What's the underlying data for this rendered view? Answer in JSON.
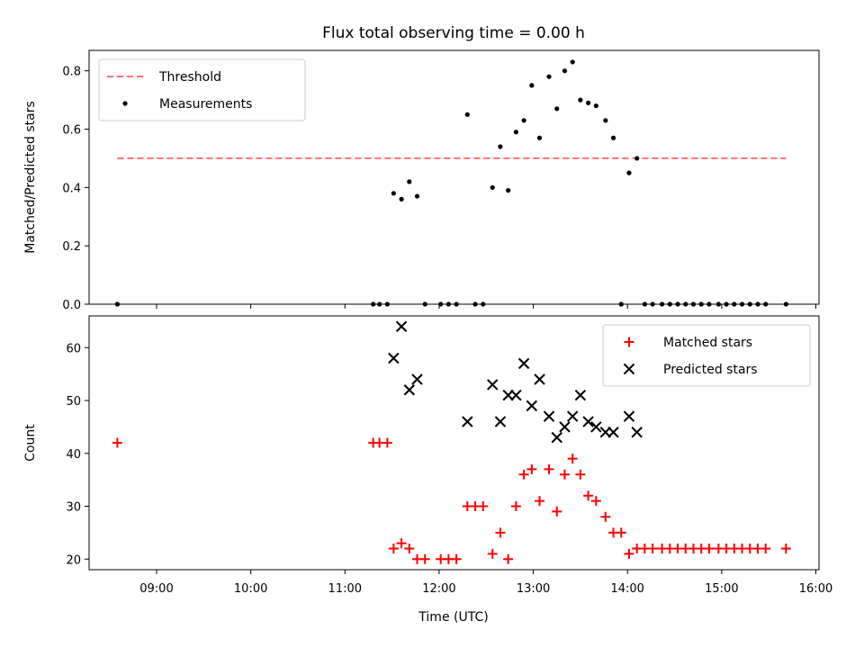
{
  "chart_data": {
    "title": "Flux total observing time = 0.00 h",
    "xlabel": "Time (UTC)",
    "xticks": [
      "09:00",
      "10:00",
      "11:00",
      "12:00",
      "13:00",
      "14:00",
      "15:00",
      "16:00"
    ],
    "colors": {
      "threshold": "#ff7070",
      "measurements": "#000000",
      "matched": "#ff0000",
      "predicted": "#000000"
    },
    "panels": [
      {
        "type": "scatter",
        "ylabel": "Matched/Predicted stars",
        "ylim": [
          0,
          0.87
        ],
        "yticks": [
          "0.0",
          "0.2",
          "0.4",
          "0.6",
          "0.8"
        ],
        "ytick_values": [
          0,
          0.2,
          0.4,
          0.6,
          0.8
        ],
        "legend_placement": "upper-left",
        "threshold": {
          "name": "Threshold",
          "value": 0.5,
          "x_range": [
            "08:35",
            "15:41"
          ]
        },
        "series": [
          {
            "name": "Measurements",
            "marker": "dot",
            "points": [
              [
                "08:35",
                0.0
              ],
              [
                "11:18",
                0.0
              ],
              [
                "11:22",
                0.0
              ],
              [
                "11:27",
                0.0
              ],
              [
                "11:31",
                0.38
              ],
              [
                "11:36",
                0.36
              ],
              [
                "11:41",
                0.42
              ],
              [
                "11:46",
                0.37
              ],
              [
                "11:51",
                0.0
              ],
              [
                "12:01",
                0.0
              ],
              [
                "12:06",
                0.0
              ],
              [
                "12:11",
                0.0
              ],
              [
                "12:18",
                0.65
              ],
              [
                "12:23",
                0.0
              ],
              [
                "12:28",
                0.0
              ],
              [
                "12:34",
                0.4
              ],
              [
                "12:39",
                0.54
              ],
              [
                "12:44",
                0.39
              ],
              [
                "12:49",
                0.59
              ],
              [
                "12:54",
                0.63
              ],
              [
                "12:59",
                0.75
              ],
              [
                "13:04",
                0.57
              ],
              [
                "13:10",
                0.78
              ],
              [
                "13:15",
                0.67
              ],
              [
                "13:20",
                0.8
              ],
              [
                "13:25",
                0.83
              ],
              [
                "13:30",
                0.7
              ],
              [
                "13:35",
                0.69
              ],
              [
                "13:40",
                0.68
              ],
              [
                "13:46",
                0.63
              ],
              [
                "13:51",
                0.57
              ],
              [
                "13:56",
                0.0
              ],
              [
                "14:01",
                0.45
              ],
              [
                "14:06",
                0.5
              ],
              [
                "14:11",
                0.0
              ],
              [
                "14:16",
                0.0
              ],
              [
                "14:22",
                0.0
              ],
              [
                "14:27",
                0.0
              ],
              [
                "14:32",
                0.0
              ],
              [
                "14:37",
                0.0
              ],
              [
                "14:42",
                0.0
              ],
              [
                "14:47",
                0.0
              ],
              [
                "14:52",
                0.0
              ],
              [
                "14:58",
                0.0
              ],
              [
                "15:03",
                0.0
              ],
              [
                "15:08",
                0.0
              ],
              [
                "15:13",
                0.0
              ],
              [
                "15:18",
                0.0
              ],
              [
                "15:23",
                0.0
              ],
              [
                "15:28",
                0.0
              ],
              [
                "15:41",
                0.0
              ]
            ]
          }
        ]
      },
      {
        "type": "scatter",
        "ylabel": "Count",
        "ylim": [
          18,
          66
        ],
        "yticks": [
          "20",
          "30",
          "40",
          "50",
          "60"
        ],
        "ytick_values": [
          20,
          30,
          40,
          50,
          60
        ],
        "legend_placement": "upper-right",
        "series": [
          {
            "name": "Matched stars",
            "marker": "plus",
            "points": [
              [
                "08:35",
                42
              ],
              [
                "11:18",
                42
              ],
              [
                "11:22",
                42
              ],
              [
                "11:27",
                42
              ],
              [
                "11:31",
                22
              ],
              [
                "11:36",
                23
              ],
              [
                "11:41",
                22
              ],
              [
                "11:46",
                20
              ],
              [
                "11:51",
                20
              ],
              [
                "12:01",
                20
              ],
              [
                "12:06",
                20
              ],
              [
                "12:11",
                20
              ],
              [
                "12:18",
                30
              ],
              [
                "12:23",
                30
              ],
              [
                "12:28",
                30
              ],
              [
                "12:34",
                21
              ],
              [
                "12:39",
                25
              ],
              [
                "12:44",
                20
              ],
              [
                "12:49",
                30
              ],
              [
                "12:54",
                36
              ],
              [
                "12:59",
                37
              ],
              [
                "13:04",
                31
              ],
              [
                "13:10",
                37
              ],
              [
                "13:15",
                29
              ],
              [
                "13:20",
                36
              ],
              [
                "13:25",
                39
              ],
              [
                "13:30",
                36
              ],
              [
                "13:35",
                32
              ],
              [
                "13:40",
                31
              ],
              [
                "13:46",
                28
              ],
              [
                "13:51",
                25
              ],
              [
                "13:56",
                25
              ],
              [
                "14:01",
                21
              ],
              [
                "14:06",
                22
              ],
              [
                "14:11",
                22
              ],
              [
                "14:16",
                22
              ],
              [
                "14:22",
                22
              ],
              [
                "14:27",
                22
              ],
              [
                "14:32",
                22
              ],
              [
                "14:37",
                22
              ],
              [
                "14:42",
                22
              ],
              [
                "14:47",
                22
              ],
              [
                "14:52",
                22
              ],
              [
                "14:58",
                22
              ],
              [
                "15:03",
                22
              ],
              [
                "15:08",
                22
              ],
              [
                "15:13",
                22
              ],
              [
                "15:18",
                22
              ],
              [
                "15:23",
                22
              ],
              [
                "15:28",
                22
              ],
              [
                "15:41",
                22
              ]
            ]
          },
          {
            "name": "Predicted stars",
            "marker": "x",
            "points": [
              [
                "11:31",
                58
              ],
              [
                "11:36",
                64
              ],
              [
                "11:41",
                52
              ],
              [
                "11:46",
                54
              ],
              [
                "12:18",
                46
              ],
              [
                "12:34",
                53
              ],
              [
                "12:39",
                46
              ],
              [
                "12:44",
                51
              ],
              [
                "12:49",
                51
              ],
              [
                "12:54",
                57
              ],
              [
                "12:59",
                49
              ],
              [
                "13:04",
                54
              ],
              [
                "13:10",
                47
              ],
              [
                "13:15",
                43
              ],
              [
                "13:20",
                45
              ],
              [
                "13:25",
                47
              ],
              [
                "13:30",
                51
              ],
              [
                "13:35",
                46
              ],
              [
                "13:40",
                45
              ],
              [
                "13:46",
                44
              ],
              [
                "13:51",
                44
              ],
              [
                "14:01",
                47
              ],
              [
                "14:06",
                44
              ]
            ]
          }
        ]
      }
    ]
  }
}
